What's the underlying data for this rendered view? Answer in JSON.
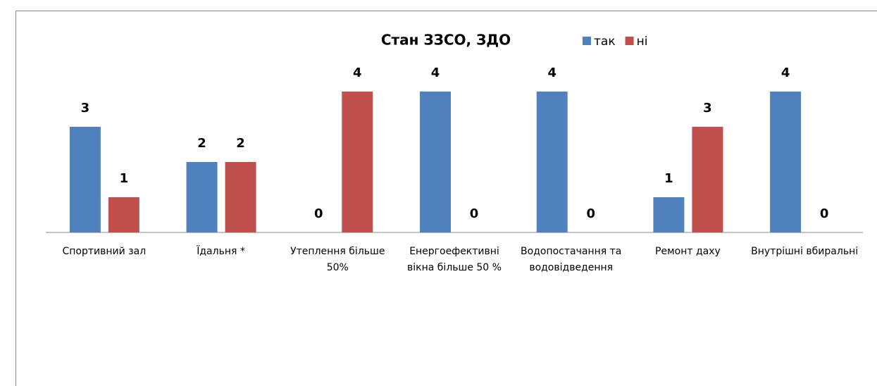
{
  "chart_data": {
    "type": "bar",
    "title": "Стан ЗЗСО, ЗДО",
    "categories": [
      "Спортивний зал",
      "Їдальня *",
      "Утеплення більше 50%",
      "Енергоефективні вікна більше 50 %",
      "Водопостачання та водовідведення",
      "Ремонт даху",
      "Внутрішні вбиральні"
    ],
    "series": [
      {
        "name": "так",
        "color": "#4f81bd",
        "values": [
          3,
          2,
          0,
          4,
          4,
          1,
          4
        ]
      },
      {
        "name": "ні",
        "color": "#c0504d",
        "values": [
          1,
          2,
          4,
          0,
          0,
          3,
          0
        ]
      }
    ],
    "ylim": [
      0,
      4
    ]
  }
}
